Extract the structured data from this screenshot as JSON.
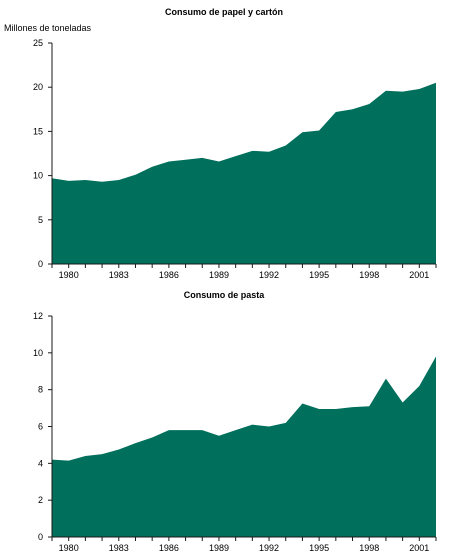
{
  "fill_color": "#006f5b",
  "chart_data": [
    {
      "type": "area",
      "title": "Consumo de papel y cartón",
      "ylabel": "Millones de toneladas",
      "xlabel": "",
      "x": [
        1979,
        1980,
        1981,
        1982,
        1983,
        1984,
        1985,
        1986,
        1987,
        1988,
        1989,
        1990,
        1991,
        1992,
        1993,
        1994,
        1995,
        1996,
        1997,
        1998,
        1999,
        2000,
        2001,
        2002
      ],
      "values": [
        9.7,
        9.4,
        9.5,
        9.3,
        9.5,
        10.1,
        11.0,
        11.6,
        11.8,
        12.0,
        11.6,
        12.2,
        12.8,
        12.7,
        13.4,
        14.9,
        15.1,
        17.2,
        17.5,
        18.1,
        19.6,
        19.5,
        19.8,
        20.5
      ],
      "xlim": [
        1979,
        2002
      ],
      "ylim": [
        0,
        25
      ],
      "yticks": [
        0,
        5,
        10,
        15,
        20,
        25
      ],
      "xticks": [
        1980,
        1983,
        1986,
        1989,
        1992,
        1995,
        1998,
        2001
      ],
      "grid": false,
      "legend": "none"
    },
    {
      "type": "area",
      "title": "Consumo de pasta",
      "ylabel": "",
      "xlabel": "",
      "x": [
        1979,
        1980,
        1981,
        1982,
        1983,
        1984,
        1985,
        1986,
        1987,
        1988,
        1989,
        1990,
        1991,
        1992,
        1993,
        1994,
        1995,
        1996,
        1997,
        1998,
        1999,
        2000,
        2001,
        2002
      ],
      "values": [
        4.2,
        4.15,
        4.4,
        4.5,
        4.75,
        5.1,
        5.4,
        5.8,
        5.8,
        5.8,
        5.5,
        5.8,
        6.1,
        6.0,
        6.2,
        7.25,
        6.95,
        6.95,
        7.05,
        7.1,
        8.6,
        7.3,
        8.2,
        9.8
      ],
      "xlim": [
        1979,
        2002
      ],
      "ylim": [
        0,
        12
      ],
      "yticks": [
        0,
        2,
        4,
        6,
        8,
        10,
        12
      ],
      "xticks": [
        1980,
        1983,
        1986,
        1989,
        1992,
        1995,
        1998,
        2001
      ],
      "grid": false,
      "legend": "none"
    }
  ]
}
